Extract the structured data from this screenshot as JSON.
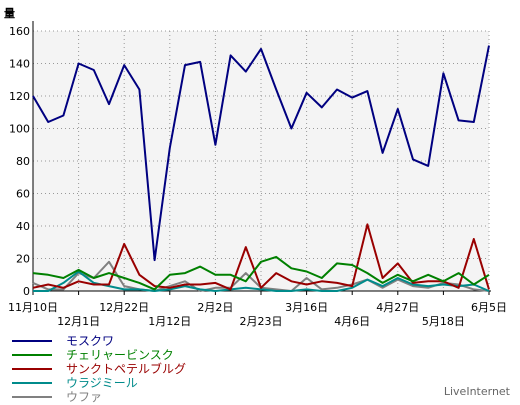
{
  "chart_data": {
    "type": "line",
    "ylabel": "量",
    "ylim": [
      0,
      160
    ],
    "yticks": [
      0,
      20,
      40,
      60,
      80,
      100,
      120,
      140,
      160
    ],
    "x_tick_labels_row1": [
      {
        "index": 0,
        "label": "11月10日"
      },
      {
        "index": 6,
        "label": "12月22日"
      },
      {
        "index": 12,
        "label": "2月2日"
      },
      {
        "index": 18,
        "label": "3月16日"
      },
      {
        "index": 24,
        "label": "4月27日"
      },
      {
        "index": 30,
        "label": "6月5日"
      }
    ],
    "x_tick_labels_row2": [
      {
        "index": 3,
        "label": "12月1日"
      },
      {
        "index": 9,
        "label": "1月12日"
      },
      {
        "index": 15,
        "label": "2月23日"
      },
      {
        "index": 21,
        "label": "4月6日"
      },
      {
        "index": 27,
        "label": "5月18日"
      }
    ],
    "n_points": 31,
    "grid": true,
    "series": [
      {
        "name": "モスクワ",
        "color": "#000080",
        "values": [
          120,
          104,
          108,
          140,
          136,
          115,
          139,
          124,
          19,
          88,
          139,
          141,
          90,
          145,
          135,
          149,
          124,
          100,
          122,
          113,
          124,
          119,
          123,
          85,
          112,
          81,
          77,
          134,
          105,
          104,
          151
        ]
      },
      {
        "name": "チェリャービンスク",
        "color": "#008000",
        "values": [
          11,
          10,
          8,
          13,
          8,
          11,
          8,
          5,
          1,
          10,
          11,
          15,
          10,
          10,
          6,
          18,
          21,
          14,
          12,
          8,
          17,
          16,
          11,
          5,
          10,
          6,
          10,
          6,
          11,
          4,
          10
        ]
      },
      {
        "name": "サンクトペテルブルグ",
        "color": "#990000",
        "values": [
          2,
          4,
          2,
          6,
          4,
          4,
          29,
          10,
          3,
          2,
          4,
          4,
          5,
          1,
          27,
          2,
          11,
          6,
          4,
          6,
          5,
          3,
          41,
          8,
          17,
          5,
          6,
          6,
          2,
          32,
          1
        ]
      },
      {
        "name": "ウラジミール",
        "color": "#008b8b",
        "values": [
          0,
          0,
          5,
          12,
          5,
          3,
          1,
          1,
          0,
          1,
          3,
          1,
          0,
          1,
          2,
          1,
          0,
          0,
          1,
          0,
          0,
          2,
          7,
          3,
          8,
          4,
          3,
          4,
          3,
          4,
          0
        ]
      },
      {
        "name": "ウファ",
        "color": "#808080",
        "values": [
          5,
          1,
          1,
          11,
          8,
          18,
          3,
          1,
          0,
          3,
          6,
          0,
          2,
          2,
          11,
          2,
          1,
          0,
          8,
          1,
          2,
          4,
          7,
          2,
          7,
          3,
          2,
          5,
          4,
          1,
          0
        ]
      }
    ]
  },
  "footer": {
    "brand": "LiveInternet"
  }
}
